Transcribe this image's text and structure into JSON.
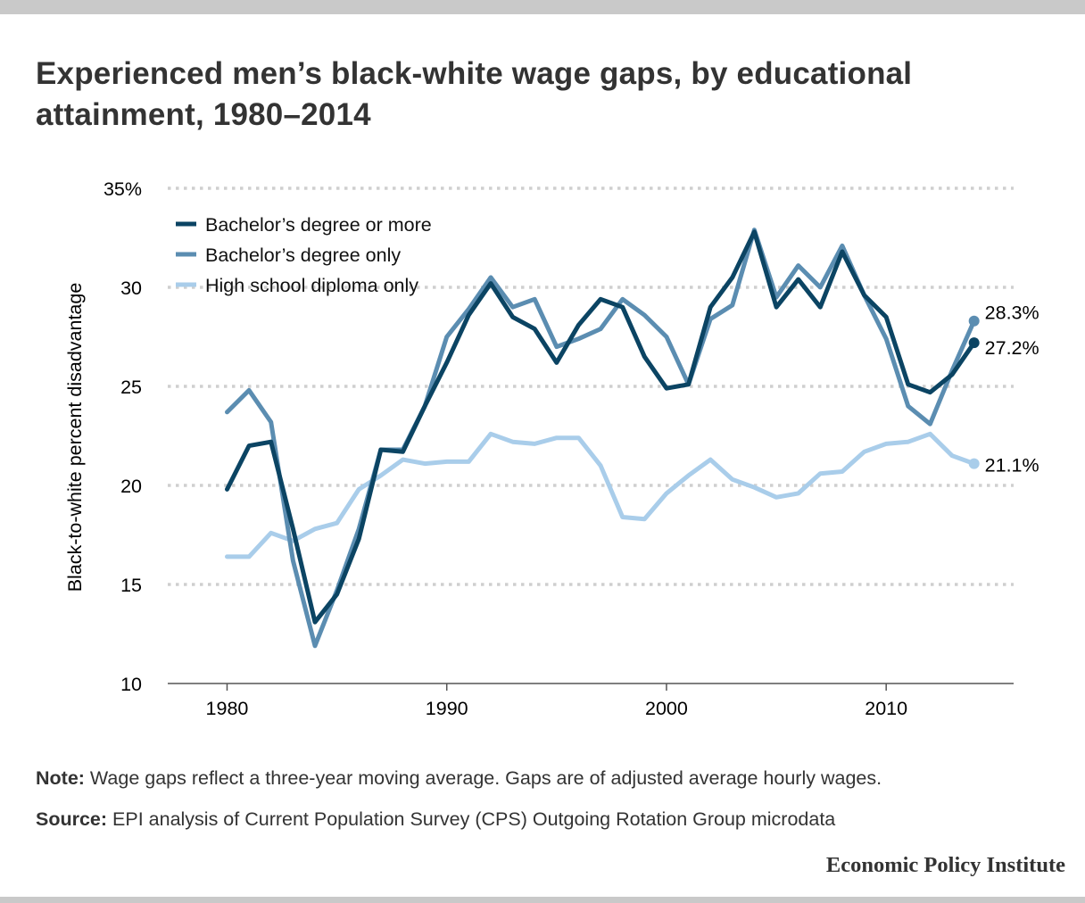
{
  "title": "Experienced men’s black-white wage gaps, by educational attainment, 1980–2014",
  "note_label": "Note:",
  "note_text": " Wage gaps reflect a three-year moving average. Gaps are of adjusted average hourly wages.",
  "source_label": "Source:",
  "source_text": " EPI analysis of Current Population Survey (CPS) Outgoing Rotation Group microdata",
  "brand": "Economic Policy Institute",
  "chart_data": {
    "type": "line",
    "ylabel": "Black-to-white percent disadvantage",
    "xlabel": "",
    "xlim": [
      1977.3,
      2015.8
    ],
    "ylim": [
      10,
      35
    ],
    "x_ticks": [
      1980,
      1990,
      2000,
      2010
    ],
    "x_tick_labels": [
      "1980",
      "1990",
      "2000",
      "2010"
    ],
    "y_ticks": [
      10,
      15,
      20,
      25,
      30,
      35
    ],
    "y_tick_labels": [
      "10",
      "15",
      "20",
      "25",
      "30",
      "35%"
    ],
    "grid": "horizontal dotted",
    "legend": "top-left",
    "x": [
      1980,
      1981,
      1982,
      1983,
      1984,
      1985,
      1986,
      1987,
      1988,
      1989,
      1990,
      1991,
      1992,
      1993,
      1994,
      1995,
      1996,
      1997,
      1998,
      1999,
      2000,
      2001,
      2002,
      2003,
      2004,
      2005,
      2006,
      2007,
      2008,
      2009,
      2010,
      2011,
      2012,
      2013,
      2014
    ],
    "series": [
      {
        "name": "Bachelor’s degree or more",
        "color": "#0b4463",
        "values": [
          19.8,
          22.0,
          22.2,
          17.8,
          13.1,
          14.5,
          17.3,
          21.8,
          21.7,
          24.0,
          26.2,
          28.6,
          30.2,
          28.5,
          27.9,
          26.2,
          28.1,
          29.4,
          29.0,
          26.5,
          24.9,
          25.1,
          29.0,
          30.5,
          32.8,
          29.0,
          30.4,
          29.0,
          31.8,
          29.6,
          28.5,
          25.1,
          24.7,
          25.6,
          27.2
        ],
        "end_label": "27.2%"
      },
      {
        "name": "Bachelor’s degree only",
        "color": "#5b8db1",
        "values": [
          23.7,
          24.8,
          23.2,
          16.2,
          11.9,
          14.7,
          17.8,
          21.8,
          21.8,
          24.0,
          27.5,
          28.9,
          30.5,
          29.0,
          29.4,
          27.0,
          27.4,
          27.9,
          29.4,
          28.6,
          27.5,
          25.1,
          28.4,
          29.1,
          32.9,
          29.5,
          31.1,
          30.0,
          32.1,
          29.6,
          27.4,
          24.0,
          23.1,
          25.8,
          28.3
        ],
        "end_label": "28.3%"
      },
      {
        "name": "High school diploma only",
        "color": "#a9cdea",
        "values": [
          16.4,
          16.4,
          17.6,
          17.2,
          17.8,
          18.1,
          19.8,
          20.5,
          21.3,
          21.1,
          21.2,
          21.2,
          22.6,
          22.2,
          22.1,
          22.4,
          22.4,
          21.0,
          18.4,
          18.3,
          19.6,
          20.5,
          21.3,
          20.3,
          19.9,
          19.4,
          19.6,
          20.6,
          20.7,
          21.7,
          22.1,
          22.2,
          22.6,
          21.5,
          21.1
        ],
        "end_label": "21.1%"
      }
    ]
  }
}
